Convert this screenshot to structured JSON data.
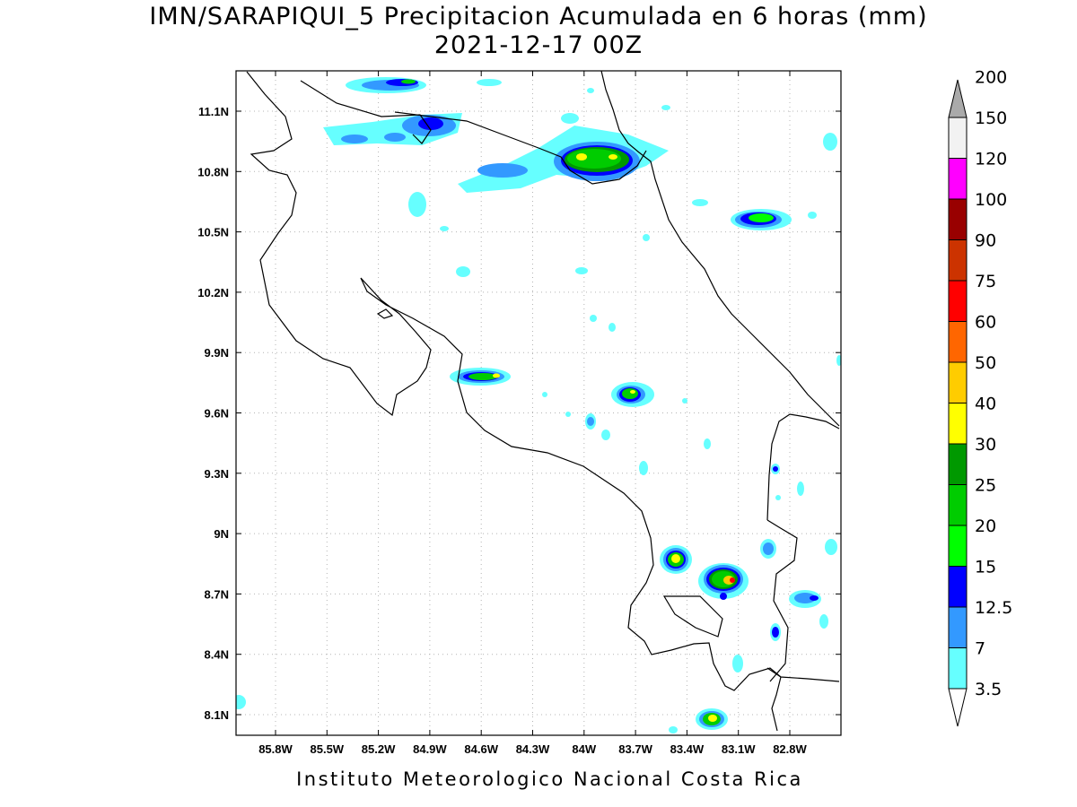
{
  "title": {
    "line1": "IMN/SARAPIQUI_5 Precipitacion Acumulada en 6 horas (mm)",
    "line2": "2021-12-17 00Z"
  },
  "footer": "Instituto Meteorologico Nacional Costa Rica",
  "map": {
    "lat_range": [
      8.0,
      11.3
    ],
    "lon_range": [
      -86.05,
      -83.05
    ],
    "lat_ticks": [
      "11.1N",
      "10.8N",
      "10.5N",
      "10.2N",
      "9.9N",
      "9.6N",
      "9.3N",
      "9N",
      "8.7N",
      "8.4N",
      "8.1N"
    ],
    "lon_ticks": [
      "85.8W",
      "85.5W",
      "85.2W",
      "84.9W",
      "84.6W",
      "84.3W",
      "84W",
      "83.7W",
      "83.4W",
      "83.1W",
      "82.8W"
    ],
    "gridlines": "dotted"
  },
  "colorbar": {
    "labels": [
      "3.5",
      "7",
      "12.5",
      "15",
      "20",
      "25",
      "30",
      "40",
      "50",
      "60",
      "75",
      "90",
      "100",
      "120",
      "150",
      "200"
    ],
    "colors": [
      "#66ffff",
      "#3399ff",
      "#0000ff",
      "#00ff00",
      "#00cc00",
      "#009900",
      "#ffff00",
      "#ffcc00",
      "#ff6600",
      "#ff0000",
      "#cc3300",
      "#990000",
      "#ff00ff",
      "#9933cc",
      "#f2f2f2",
      "#aaaaaa"
    ],
    "orientation": "vertical"
  }
}
